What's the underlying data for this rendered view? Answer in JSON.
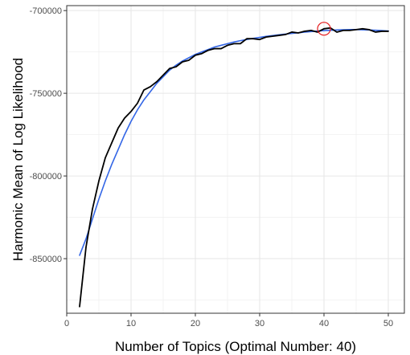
{
  "chart_data": {
    "type": "line",
    "title": "",
    "xlabel": "Number of Topics (Optimal Number: 40)",
    "ylabel": "Harmonic Mean of Log Likelihood",
    "xlim": [
      0,
      52.5
    ],
    "ylim": [
      -883000,
      -697000
    ],
    "x_ticks": [
      0,
      10,
      20,
      30,
      40,
      50
    ],
    "x_tick_labels": [
      "0",
      "10",
      "20",
      "30",
      "40",
      "50"
    ],
    "y_ticks": [
      -850000,
      -800000,
      -750000,
      -700000
    ],
    "y_tick_labels": [
      "-850000",
      "-800000",
      "-750000",
      "-700000"
    ],
    "grid": true,
    "legend": "none",
    "series": [
      {
        "role": "observed",
        "color": "#000000",
        "x": [
          2,
          3,
          4,
          5,
          6,
          7,
          8,
          9,
          10,
          11,
          12,
          13,
          14,
          15,
          16,
          17,
          18,
          19,
          20,
          21,
          22,
          23,
          24,
          25,
          26,
          27,
          28,
          29,
          30,
          31,
          32,
          33,
          34,
          35,
          36,
          37,
          38,
          39,
          40,
          41,
          42,
          43,
          44,
          45,
          46,
          47,
          48,
          49,
          50
        ],
        "y": [
          -879000,
          -843000,
          -820000,
          -803000,
          -789000,
          -780000,
          -771000,
          -765000,
          -761000,
          -756000,
          -748000,
          -746000,
          -743000,
          -739000,
          -735000,
          -734000,
          -731000,
          -730000,
          -727000,
          -726000,
          -724000,
          -723000,
          -723000,
          -721000,
          -720000,
          -720000,
          -717000,
          -717000,
          -717500,
          -716000,
          -715500,
          -715000,
          -714500,
          -713000,
          -713500,
          -712500,
          -712000,
          -713000,
          -711000,
          -710500,
          -713000,
          -712000,
          -712000,
          -711500,
          -711000,
          -711500,
          -713000,
          -712500,
          -712500
        ]
      },
      {
        "role": "smooth",
        "color": "#3366e6",
        "x": [
          2,
          3,
          4,
          5,
          6,
          7,
          8,
          9,
          10,
          11,
          12,
          13,
          14,
          15,
          16,
          17,
          18,
          19,
          20,
          21,
          22,
          23,
          24,
          25,
          26,
          27,
          28,
          29,
          30,
          31,
          32,
          33,
          34,
          35,
          36,
          37,
          38,
          39,
          40,
          41,
          42,
          43,
          44,
          45,
          46,
          47,
          48,
          49,
          50
        ],
        "y": [
          -848000,
          -838000,
          -826000,
          -814000,
          -803000,
          -793000,
          -784000,
          -775000,
          -767000,
          -760000,
          -754000,
          -749000,
          -744000,
          -740000,
          -736000,
          -733000,
          -730500,
          -728500,
          -726500,
          -725000,
          -723500,
          -722000,
          -721000,
          -720000,
          -719000,
          -718200,
          -717500,
          -716800,
          -716200,
          -715600,
          -715100,
          -714600,
          -714200,
          -713800,
          -713400,
          -713000,
          -712700,
          -712400,
          -712100,
          -711900,
          -711700,
          -711600,
          -711500,
          -711500,
          -711600,
          -711700,
          -711900,
          -712100,
          -712300
        ]
      }
    ],
    "highlight": {
      "x": 40,
      "y": -711000,
      "color": "#e41a1c"
    }
  }
}
